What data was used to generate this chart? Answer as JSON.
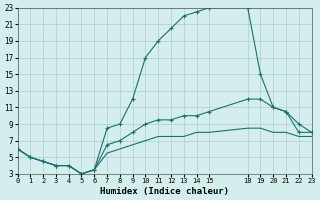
{
  "xlabel": "Humidex (Indice chaleur)",
  "ylabel": "",
  "bg_color": "#d4eeed",
  "grid_color": "#b0cece",
  "line_color": "#1a7070",
  "marker_color": "#1a7070",
  "series1_x": [
    0,
    1,
    2,
    3,
    4,
    5,
    6,
    7,
    8,
    9,
    10,
    11,
    12,
    13,
    14,
    15,
    18,
    19,
    20,
    21,
    22,
    23
  ],
  "series1_y": [
    6,
    5,
    4.5,
    4,
    4,
    3,
    3.5,
    8.5,
    9,
    12,
    17,
    19,
    20.5,
    22,
    22.5,
    23,
    23,
    15,
    11,
    10.5,
    9,
    8
  ],
  "series2_x": [
    0,
    1,
    2,
    3,
    4,
    5,
    6,
    7,
    8,
    9,
    10,
    11,
    12,
    13,
    14,
    15,
    18,
    19,
    20,
    21,
    22,
    23
  ],
  "series2_y": [
    6,
    5,
    4.5,
    4,
    4,
    3,
    3.5,
    6.5,
    7,
    8,
    9,
    9.5,
    9.5,
    10,
    10,
    10.5,
    12,
    12,
    11,
    10.5,
    8,
    8
  ],
  "series3_x": [
    0,
    1,
    2,
    3,
    4,
    5,
    6,
    7,
    8,
    9,
    10,
    11,
    12,
    13,
    14,
    15,
    18,
    19,
    20,
    21,
    22,
    23
  ],
  "series3_y": [
    6,
    5,
    4.5,
    4,
    4,
    3,
    3.5,
    5.5,
    6,
    6.5,
    7,
    7.5,
    7.5,
    7.5,
    8,
    8,
    8.5,
    8.5,
    8,
    8,
    7.5,
    7.5
  ],
  "xlim": [
    0,
    23
  ],
  "ylim": [
    3,
    23
  ],
  "xticks": [
    0,
    1,
    2,
    3,
    4,
    5,
    6,
    7,
    8,
    9,
    10,
    11,
    12,
    13,
    14,
    15,
    18,
    19,
    20,
    21,
    22,
    23
  ],
  "yticks": [
    3,
    5,
    7,
    9,
    11,
    13,
    15,
    17,
    19,
    21,
    23
  ]
}
